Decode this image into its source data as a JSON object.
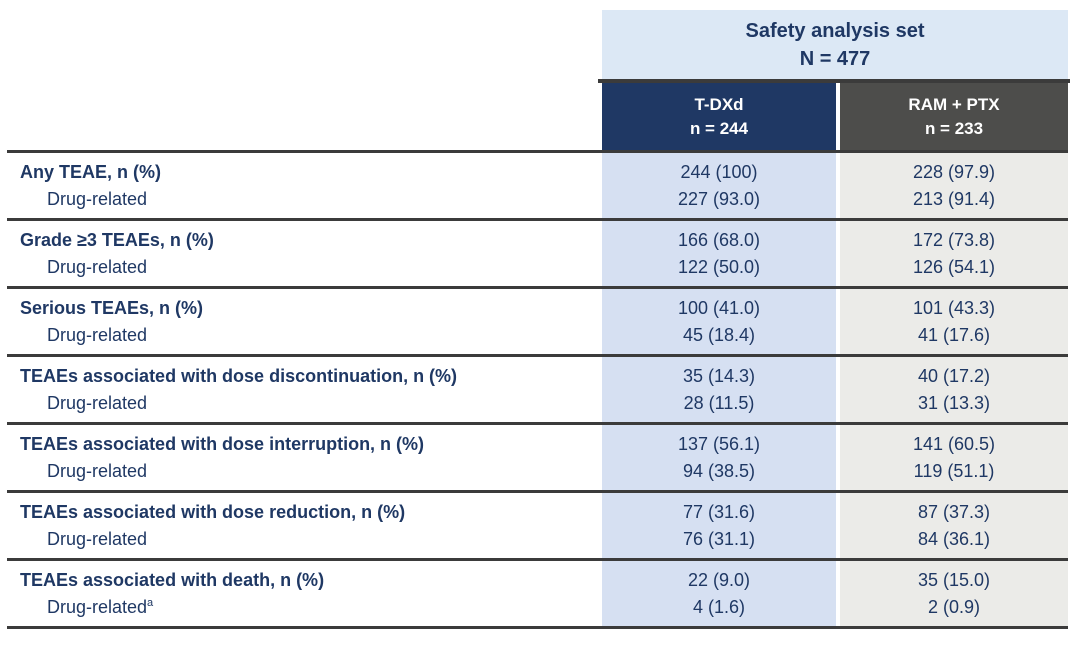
{
  "table": {
    "group_header": {
      "title": "Safety analysis set",
      "n_label": "N = 477"
    },
    "columns": [
      {
        "name": "T-DXd",
        "n_label": "n = 244"
      },
      {
        "name": "RAM + PTX",
        "n_label": "n = 233"
      }
    ],
    "rows": [
      {
        "label": "Any TEAE, n (%)",
        "sub": "Drug-related",
        "sub_sup": "",
        "tdxd": "244 (100)",
        "tdxd_sub": "227 (93.0)",
        "ram": "228 (97.9)",
        "ram_sub": "213 (91.4)"
      },
      {
        "label": "Grade ≥3 TEAEs, n (%)",
        "sub": "Drug-related",
        "sub_sup": "",
        "tdxd": "166 (68.0)",
        "tdxd_sub": "122 (50.0)",
        "ram": "172 (73.8)",
        "ram_sub": "126 (54.1)"
      },
      {
        "label": "Serious TEAEs, n (%)",
        "sub": "Drug-related",
        "sub_sup": "",
        "tdxd": "100 (41.0)",
        "tdxd_sub": "45 (18.4)",
        "ram": "101 (43.3)",
        "ram_sub": "41 (17.6)"
      },
      {
        "label": "TEAEs associated with dose discontinuation, n (%)",
        "sub": "Drug-related",
        "sub_sup": "",
        "tdxd": "35 (14.3)",
        "tdxd_sub": "28 (11.5)",
        "ram": "40 (17.2)",
        "ram_sub": "31 (13.3)"
      },
      {
        "label": "TEAEs associated with dose interruption, n (%)",
        "sub": "Drug-related",
        "sub_sup": "",
        "tdxd": "137 (56.1)",
        "tdxd_sub": "94 (38.5)",
        "ram": "141 (60.5)",
        "ram_sub": "119 (51.1)"
      },
      {
        "label": "TEAEs associated with dose reduction, n (%)",
        "sub": "Drug-related",
        "sub_sup": "",
        "tdxd": "77 (31.6)",
        "tdxd_sub": "76 (31.1)",
        "ram": "87 (37.3)",
        "ram_sub": "84 (36.1)"
      },
      {
        "label": "TEAEs associated with death, n (%)",
        "sub": "Drug-related",
        "sub_sup": "a",
        "tdxd": "22 (9.0)",
        "tdxd_sub": "4 (1.6)",
        "ram": "35 (15.0)",
        "ram_sub": "2 (0.9)"
      }
    ],
    "colors": {
      "header_band_bg": "#dce8f5",
      "tdxd_header_bg": "#1f3864",
      "ram_header_bg": "#4d4d4b",
      "tdxd_col_bg": "#d6e0f2",
      "ram_col_bg": "#ebebe8",
      "text_navy": "#1f3864",
      "rule_color": "#3b3b3b",
      "header_text": "#ffffff"
    }
  }
}
